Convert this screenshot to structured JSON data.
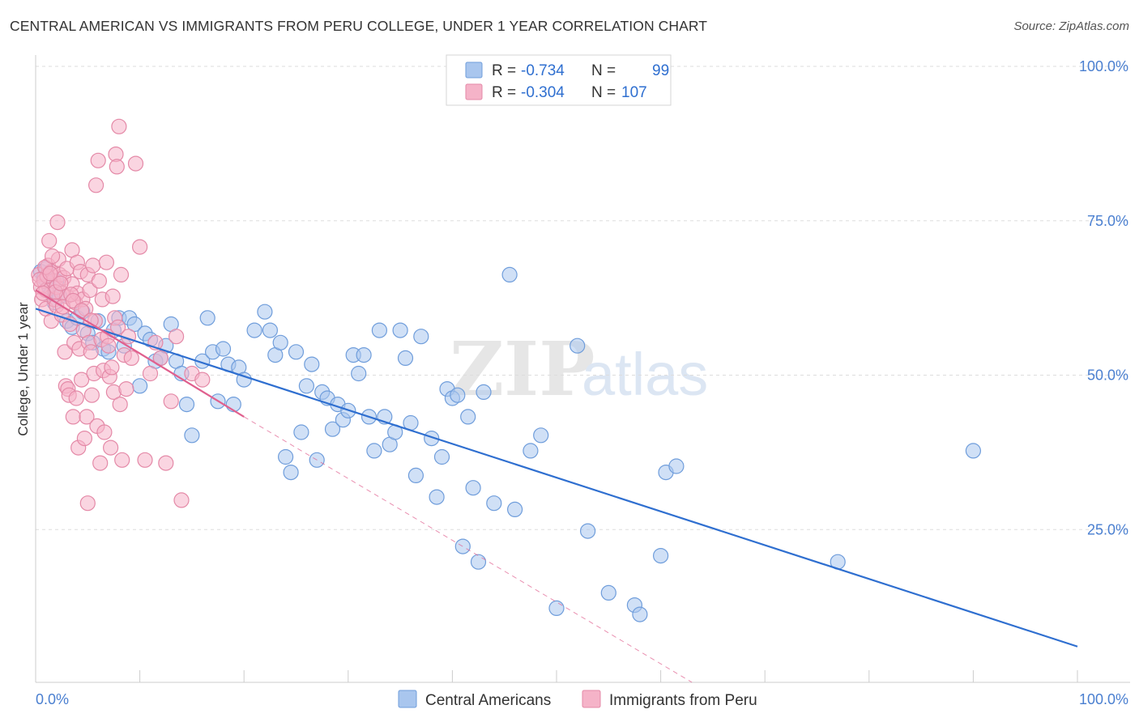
{
  "header": {
    "title": "CENTRAL AMERICAN VS IMMIGRANTS FROM PERU COLLEGE, UNDER 1 YEAR CORRELATION CHART",
    "source": "Source: ZipAtlas.com"
  },
  "watermark": {
    "zip": "ZIP",
    "atlas": "atlas"
  },
  "colors": {
    "blue": "#2f6fd0",
    "blue_fill": "#a9c6ee",
    "pink": "#e0608e",
    "pink_fill": "#f5b3c8",
    "tick_text": "#4a7fd0",
    "grid": "#dddddd"
  },
  "legend": {
    "r_label": "R =",
    "n_label": "N =",
    "rows": [
      {
        "r": "-0.734",
        "n": "99"
      },
      {
        "r": "-0.304",
        "n": "107"
      }
    ]
  },
  "chart_data": {
    "type": "scatter",
    "title": "CENTRAL AMERICAN VS IMMIGRANTS FROM PERU COLLEGE, UNDER 1 YEAR CORRELATION CHART",
    "xlabel": "",
    "ylabel": "College, Under 1 year",
    "xlim": [
      0,
      100
    ],
    "ylim": [
      0,
      100
    ],
    "x_tick_labels": [
      "0.0%",
      "100.0%"
    ],
    "y_tick_labels": [
      "100.0%",
      "75.0%",
      "50.0%",
      "25.0%"
    ],
    "y_gridlines": [
      100,
      75,
      50,
      25
    ],
    "grid": true,
    "legend_position": "top-center",
    "series": [
      {
        "name": "Central Americans",
        "color": "#2f6fd0",
        "r": -0.734,
        "n": 99,
        "trend": {
          "x": [
            0,
            100
          ],
          "y": [
            60.5,
            5.8
          ],
          "style": "solid"
        },
        "points": [
          [
            0.5,
            66.5
          ],
          [
            0.8,
            65.5
          ],
          [
            1.0,
            67.0
          ],
          [
            1.3,
            64.0
          ],
          [
            1.5,
            63.0
          ],
          [
            1.8,
            61.5
          ],
          [
            2.0,
            65.0
          ],
          [
            2.3,
            62.5
          ],
          [
            3.0,
            58.5
          ],
          [
            3.5,
            57.5
          ],
          [
            4.0,
            59.0
          ],
          [
            4.5,
            60.0
          ],
          [
            5.0,
            56.5
          ],
          [
            5.5,
            55.0
          ],
          [
            6.0,
            58.5
          ],
          [
            6.5,
            54.0
          ],
          [
            7.0,
            53.5
          ],
          [
            7.5,
            57.0
          ],
          [
            8.0,
            59.0
          ],
          [
            8.5,
            54.5
          ],
          [
            9.0,
            59.0
          ],
          [
            9.5,
            58.0
          ],
          [
            10.0,
            48.0
          ],
          [
            10.5,
            56.5
          ],
          [
            11.0,
            55.5
          ],
          [
            11.5,
            52.0
          ],
          [
            12.0,
            52.5
          ],
          [
            12.5,
            54.5
          ],
          [
            13.0,
            58.0
          ],
          [
            13.5,
            52.0
          ],
          [
            14.0,
            50.0
          ],
          [
            14.5,
            45.0
          ],
          [
            15.0,
            40.0
          ],
          [
            16.0,
            52.0
          ],
          [
            16.5,
            59.0
          ],
          [
            17.0,
            53.5
          ],
          [
            17.5,
            45.5
          ],
          [
            18.0,
            54.0
          ],
          [
            18.5,
            51.5
          ],
          [
            19.0,
            45.0
          ],
          [
            19.5,
            51.0
          ],
          [
            20.0,
            49.0
          ],
          [
            21.0,
            57.0
          ],
          [
            22.0,
            60.0
          ],
          [
            22.5,
            57.0
          ],
          [
            23.0,
            53.0
          ],
          [
            23.5,
            55.0
          ],
          [
            24.0,
            36.5
          ],
          [
            24.5,
            34.0
          ],
          [
            25.0,
            53.5
          ],
          [
            25.5,
            40.5
          ],
          [
            26.0,
            48.0
          ],
          [
            26.5,
            51.5
          ],
          [
            27.0,
            36.0
          ],
          [
            27.5,
            47.0
          ],
          [
            28.0,
            46.0
          ],
          [
            28.5,
            41.0
          ],
          [
            29.0,
            45.0
          ],
          [
            29.5,
            42.5
          ],
          [
            30.0,
            44.0
          ],
          [
            30.5,
            53.0
          ],
          [
            31.0,
            50.0
          ],
          [
            31.5,
            53.0
          ],
          [
            32.0,
            43.0
          ],
          [
            32.5,
            37.5
          ],
          [
            33.0,
            57.0
          ],
          [
            33.5,
            43.0
          ],
          [
            34.0,
            38.5
          ],
          [
            34.5,
            40.5
          ],
          [
            35.0,
            57.0
          ],
          [
            35.5,
            52.5
          ],
          [
            36.0,
            42.0
          ],
          [
            36.5,
            33.5
          ],
          [
            37.0,
            56.0
          ],
          [
            38.0,
            39.5
          ],
          [
            38.5,
            30.0
          ],
          [
            39.0,
            36.5
          ],
          [
            39.5,
            47.5
          ],
          [
            40.0,
            46.0
          ],
          [
            40.5,
            46.5
          ],
          [
            41.0,
            22.0
          ],
          [
            41.5,
            43.0
          ],
          [
            42.0,
            31.5
          ],
          [
            42.5,
            19.5
          ],
          [
            43.0,
            47.0
          ],
          [
            44.0,
            29.0
          ],
          [
            45.5,
            66.0
          ],
          [
            46.0,
            28.0
          ],
          [
            47.5,
            37.5
          ],
          [
            48.5,
            40.0
          ],
          [
            50.0,
            12.0
          ],
          [
            52.0,
            54.5
          ],
          [
            53.0,
            24.5
          ],
          [
            55.0,
            14.5
          ],
          [
            57.5,
            12.5
          ],
          [
            58.0,
            11.0
          ],
          [
            60.0,
            20.5
          ],
          [
            60.5,
            34.0
          ],
          [
            61.5,
            35.0
          ],
          [
            77.0,
            19.5
          ],
          [
            90.0,
            37.5
          ]
        ]
      },
      {
        "name": "Immigrants from Peru",
        "color": "#e0608e",
        "r": -0.304,
        "n": 107,
        "trend": {
          "x": [
            0,
            20
          ],
          "y": [
            63.5,
            43.0
          ],
          "style": "solid"
        },
        "trend_extension": {
          "x": [
            20,
            63
          ],
          "y": [
            43.0,
            0
          ],
          "style": "dashed"
        },
        "points": [
          [
            0.3,
            66.0
          ],
          [
            0.5,
            64.0
          ],
          [
            0.6,
            62.0
          ],
          [
            0.8,
            65.0
          ],
          [
            1.0,
            63.5
          ],
          [
            1.0,
            60.5
          ],
          [
            1.2,
            67.5
          ],
          [
            1.3,
            71.5
          ],
          [
            1.5,
            66.5
          ],
          [
            1.5,
            58.5
          ],
          [
            1.7,
            65.0
          ],
          [
            1.8,
            62.0
          ],
          [
            2.0,
            64.0
          ],
          [
            2.0,
            61.0
          ],
          [
            2.2,
            68.5
          ],
          [
            2.3,
            66.0
          ],
          [
            2.5,
            63.0
          ],
          [
            2.5,
            59.5
          ],
          [
            2.7,
            65.5
          ],
          [
            2.8,
            53.5
          ],
          [
            2.9,
            48.0
          ],
          [
            3.0,
            67.0
          ],
          [
            3.0,
            62.5
          ],
          [
            3.1,
            47.5
          ],
          [
            3.2,
            46.5
          ],
          [
            3.3,
            58.0
          ],
          [
            3.5,
            70.0
          ],
          [
            3.5,
            64.5
          ],
          [
            3.6,
            43.0
          ],
          [
            3.7,
            55.0
          ],
          [
            3.8,
            61.5
          ],
          [
            3.9,
            46.0
          ],
          [
            4.0,
            68.0
          ],
          [
            4.0,
            63.0
          ],
          [
            4.1,
            38.0
          ],
          [
            4.2,
            54.0
          ],
          [
            4.3,
            66.5
          ],
          [
            4.4,
            49.0
          ],
          [
            4.5,
            62.0
          ],
          [
            4.6,
            57.0
          ],
          [
            4.7,
            39.5
          ],
          [
            4.8,
            60.5
          ],
          [
            4.9,
            43.0
          ],
          [
            5.0,
            66.0
          ],
          [
            5.0,
            29.0
          ],
          [
            5.1,
            55.0
          ],
          [
            5.2,
            63.5
          ],
          [
            5.3,
            53.5
          ],
          [
            5.4,
            46.5
          ],
          [
            5.5,
            67.5
          ],
          [
            5.6,
            50.0
          ],
          [
            5.7,
            58.5
          ],
          [
            5.8,
            80.5
          ],
          [
            5.9,
            41.5
          ],
          [
            6.0,
            84.5
          ],
          [
            6.1,
            65.0
          ],
          [
            6.2,
            35.5
          ],
          [
            6.3,
            55.5
          ],
          [
            6.4,
            62.0
          ],
          [
            6.5,
            50.5
          ],
          [
            6.6,
            40.5
          ],
          [
            6.8,
            68.0
          ],
          [
            6.9,
            56.0
          ],
          [
            7.0,
            54.5
          ],
          [
            7.1,
            49.5
          ],
          [
            7.2,
            38.0
          ],
          [
            7.3,
            51.0
          ],
          [
            7.4,
            62.5
          ],
          [
            7.5,
            47.0
          ],
          [
            7.6,
            59.0
          ],
          [
            7.7,
            85.5
          ],
          [
            7.8,
            83.5
          ],
          [
            7.9,
            57.5
          ],
          [
            8.0,
            90.0
          ],
          [
            8.1,
            45.0
          ],
          [
            8.2,
            66.0
          ],
          [
            8.3,
            36.0
          ],
          [
            8.5,
            53.0
          ],
          [
            8.7,
            47.5
          ],
          [
            8.9,
            56.0
          ],
          [
            9.2,
            52.5
          ],
          [
            9.6,
            84.0
          ],
          [
            10.0,
            70.5
          ],
          [
            10.5,
            36.0
          ],
          [
            11.0,
            50.0
          ],
          [
            11.5,
            55.0
          ],
          [
            12.0,
            52.5
          ],
          [
            12.5,
            35.5
          ],
          [
            13.0,
            45.5
          ],
          [
            13.5,
            56.0
          ],
          [
            14.0,
            29.5
          ],
          [
            15.0,
            50.0
          ],
          [
            16.0,
            49.0
          ],
          [
            1.1,
            65.8
          ],
          [
            1.9,
            63.2
          ],
          [
            2.6,
            60.8
          ],
          [
            3.4,
            62.8
          ],
          [
            0.9,
            67.2
          ],
          [
            1.6,
            69.0
          ],
          [
            2.1,
            74.5
          ],
          [
            0.4,
            65.2
          ],
          [
            0.7,
            63.0
          ],
          [
            1.4,
            66.2
          ],
          [
            2.4,
            64.6
          ],
          [
            3.6,
            61.8
          ],
          [
            4.4,
            60.2
          ],
          [
            5.3,
            58.6
          ]
        ]
      }
    ]
  },
  "bottom_legend": {
    "items": [
      {
        "label": "Central Americans"
      },
      {
        "label": "Immigrants from Peru"
      }
    ]
  }
}
